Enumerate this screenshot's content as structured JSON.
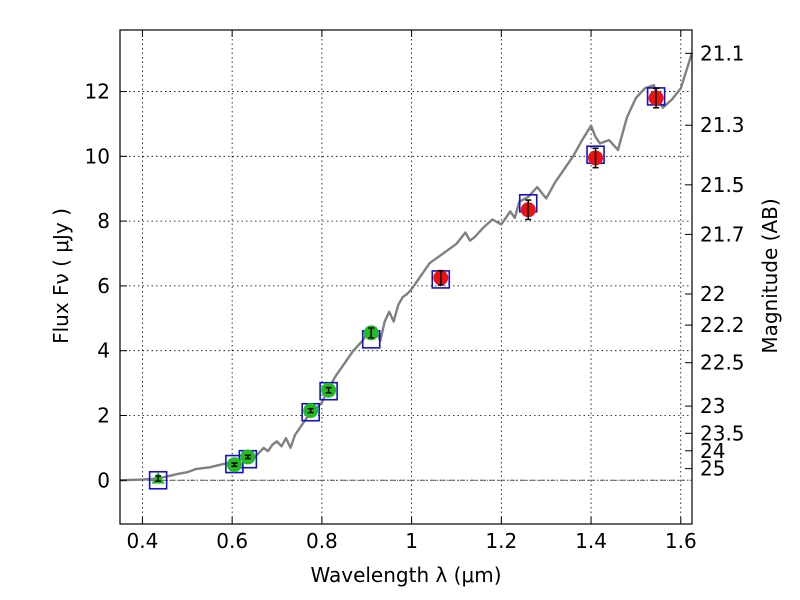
{
  "chart_data": {
    "type": "scatter",
    "xlabel": "Wavelength  λ (μm)",
    "ylabel": "Flux  Fν  ( μJy )",
    "y2label": "Magnitude (AB)",
    "xlim": [
      0.35,
      1.625
    ],
    "ylim": [
      -1.35,
      13.9
    ],
    "xticks": [
      0.4,
      0.6,
      0.8,
      1.0,
      1.2,
      1.4,
      1.6
    ],
    "xtick_labels": [
      "0.4",
      "0.6",
      "0.8",
      "1",
      "1.2",
      "1.4",
      "1.6"
    ],
    "yticks": [
      0,
      2,
      4,
      6,
      8,
      10,
      12
    ],
    "ytick_labels": [
      "0",
      "2",
      "4",
      "6",
      "8",
      "10",
      "12"
    ],
    "y2ticks": [
      {
        "label": "21.1",
        "flux": 13.18
      },
      {
        "label": "21.3",
        "flux": 10.96
      },
      {
        "label": "21.5",
        "flux": 9.12
      },
      {
        "label": "21.7",
        "flux": 7.59
      },
      {
        "label": "22",
        "flux": 5.75
      },
      {
        "label": "22.2",
        "flux": 4.79
      },
      {
        "label": "22.5",
        "flux": 3.63
      },
      {
        "label": "23",
        "flux": 2.29
      },
      {
        "label": "23.5",
        "flux": 1.45
      },
      {
        "label": "24",
        "flux": 0.91
      },
      {
        "label": "25",
        "flux": 0.36
      }
    ],
    "grid": true,
    "colors": {
      "model": "#808080",
      "green": "#22bb22",
      "red": "#ee1111",
      "box": "#1111cc",
      "errorbar": "#000000"
    },
    "model_spectrum": {
      "x": [
        0.35,
        0.4,
        0.43,
        0.45,
        0.48,
        0.5,
        0.52,
        0.55,
        0.58,
        0.6,
        0.62,
        0.64,
        0.65,
        0.66,
        0.67,
        0.68,
        0.69,
        0.7,
        0.71,
        0.72,
        0.73,
        0.74,
        0.75,
        0.76,
        0.77,
        0.78,
        0.79,
        0.8,
        0.81,
        0.82,
        0.83,
        0.84,
        0.85,
        0.86,
        0.87,
        0.88,
        0.89,
        0.9,
        0.91,
        0.92,
        0.93,
        0.94,
        0.95,
        0.96,
        0.97,
        0.98,
        0.99,
        1.0,
        1.02,
        1.04,
        1.06,
        1.08,
        1.1,
        1.12,
        1.13,
        1.14,
        1.16,
        1.18,
        1.2,
        1.22,
        1.23,
        1.24,
        1.26,
        1.28,
        1.3,
        1.32,
        1.34,
        1.36,
        1.38,
        1.4,
        1.41,
        1.42,
        1.44,
        1.46,
        1.48,
        1.5,
        1.52,
        1.54,
        1.55,
        1.56,
        1.58,
        1.6,
        1.625
      ],
      "y": [
        0.0,
        0.02,
        0.05,
        0.1,
        0.2,
        0.25,
        0.35,
        0.4,
        0.5,
        0.55,
        0.65,
        0.75,
        0.7,
        0.85,
        1.0,
        0.9,
        1.1,
        1.2,
        1.05,
        1.3,
        1.0,
        1.4,
        1.6,
        1.8,
        2.0,
        2.1,
        2.25,
        2.4,
        2.7,
        2.95,
        3.2,
        3.4,
        3.6,
        3.8,
        4.0,
        4.15,
        4.3,
        4.5,
        4.65,
        4.7,
        4.3,
        4.9,
        5.2,
        4.9,
        5.4,
        5.65,
        5.75,
        5.9,
        6.3,
        6.7,
        6.9,
        7.1,
        7.3,
        7.65,
        7.4,
        7.5,
        7.8,
        8.05,
        7.9,
        8.3,
        8.1,
        8.6,
        8.75,
        9.05,
        8.7,
        9.2,
        9.6,
        10.0,
        10.5,
        10.95,
        10.6,
        10.4,
        10.5,
        10.2,
        11.2,
        11.8,
        12.1,
        12.2,
        11.75,
        11.5,
        11.75,
        12.1,
        13.2
      ]
    },
    "observed": [
      {
        "x": 0.435,
        "y": 0.05,
        "err": 0.08,
        "color": "green",
        "marker": "triangle"
      },
      {
        "x": 0.605,
        "y": 0.48,
        "err": 0.05,
        "color": "green",
        "marker": "circle"
      },
      {
        "x": 0.635,
        "y": 0.72,
        "err": 0.05,
        "color": "green",
        "marker": "circle"
      },
      {
        "x": 0.775,
        "y": 2.15,
        "err": 0.06,
        "color": "green",
        "marker": "circle"
      },
      {
        "x": 0.815,
        "y": 2.78,
        "err": 0.08,
        "color": "green",
        "marker": "circle"
      },
      {
        "x": 0.91,
        "y": 4.55,
        "err": 0.15,
        "color": "green",
        "marker": "circle"
      },
      {
        "x": 1.065,
        "y": 6.25,
        "err": 0.22,
        "color": "red",
        "marker": "circle"
      },
      {
        "x": 1.26,
        "y": 8.35,
        "err": 0.3,
        "color": "red",
        "marker": "circle"
      },
      {
        "x": 1.41,
        "y": 9.95,
        "err": 0.3,
        "color": "red",
        "marker": "circle"
      },
      {
        "x": 1.545,
        "y": 11.8,
        "err": 0.3,
        "color": "red",
        "marker": "circle"
      }
    ],
    "model_photometry": [
      {
        "x": 0.435,
        "y": 0.0
      },
      {
        "x": 0.605,
        "y": 0.5
      },
      {
        "x": 0.635,
        "y": 0.65
      },
      {
        "x": 0.775,
        "y": 2.1
      },
      {
        "x": 0.815,
        "y": 2.75
      },
      {
        "x": 0.91,
        "y": 4.35
      },
      {
        "x": 1.065,
        "y": 6.2
      },
      {
        "x": 1.26,
        "y": 8.55
      },
      {
        "x": 1.41,
        "y": 10.05
      },
      {
        "x": 1.545,
        "y": 11.85
      }
    ]
  }
}
